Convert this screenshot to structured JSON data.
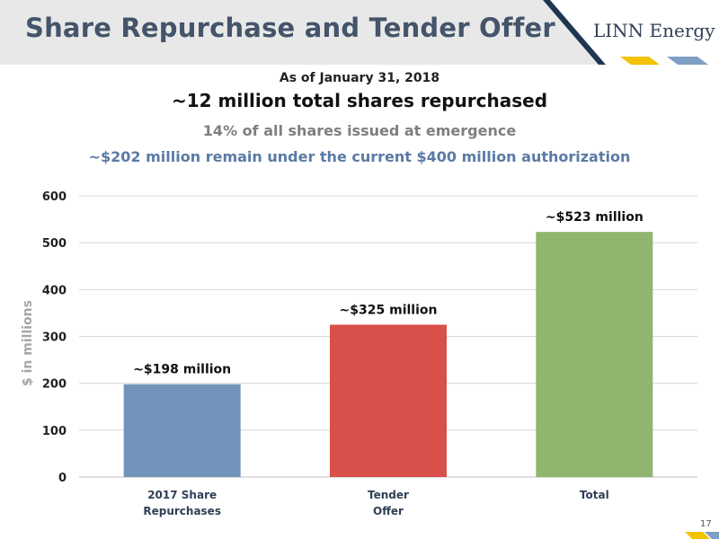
{
  "header": {
    "title": "Share Repurchase and Tender Offer",
    "logo": "LINN Energy"
  },
  "summary": {
    "date": "As of January 31, 2018",
    "headline": "~12 million total shares repurchased",
    "subheadline": "14% of all shares issued at emergence",
    "authorization_note": "~$202 million remain under the current $400 million authorization"
  },
  "page_number": "17",
  "colors": {
    "title": "#44546a",
    "bar_1": "#7294bb",
    "bar_2": "#d94f4a",
    "bar_3": "#8fb56e",
    "accent_gold": "#f2c300",
    "accent_blue": "#7f9fc4",
    "logo_navy": "#2f3f55"
  },
  "chart_data": {
    "type": "bar",
    "categories": [
      [
        "2017 Share",
        "Repurchases"
      ],
      [
        "Tender",
        "Offer"
      ],
      [
        "Total"
      ]
    ],
    "values": [
      198,
      325,
      523
    ],
    "data_labels": [
      "~$198 million",
      "~$325 million",
      "~$523 million"
    ],
    "bar_colors": [
      "#7294bb",
      "#d94f4a",
      "#8fb56e"
    ],
    "ylabel": "$ in millions",
    "ylim": [
      0,
      600
    ],
    "yticks": [
      0,
      100,
      200,
      300,
      400,
      500,
      600
    ],
    "grid": true
  }
}
